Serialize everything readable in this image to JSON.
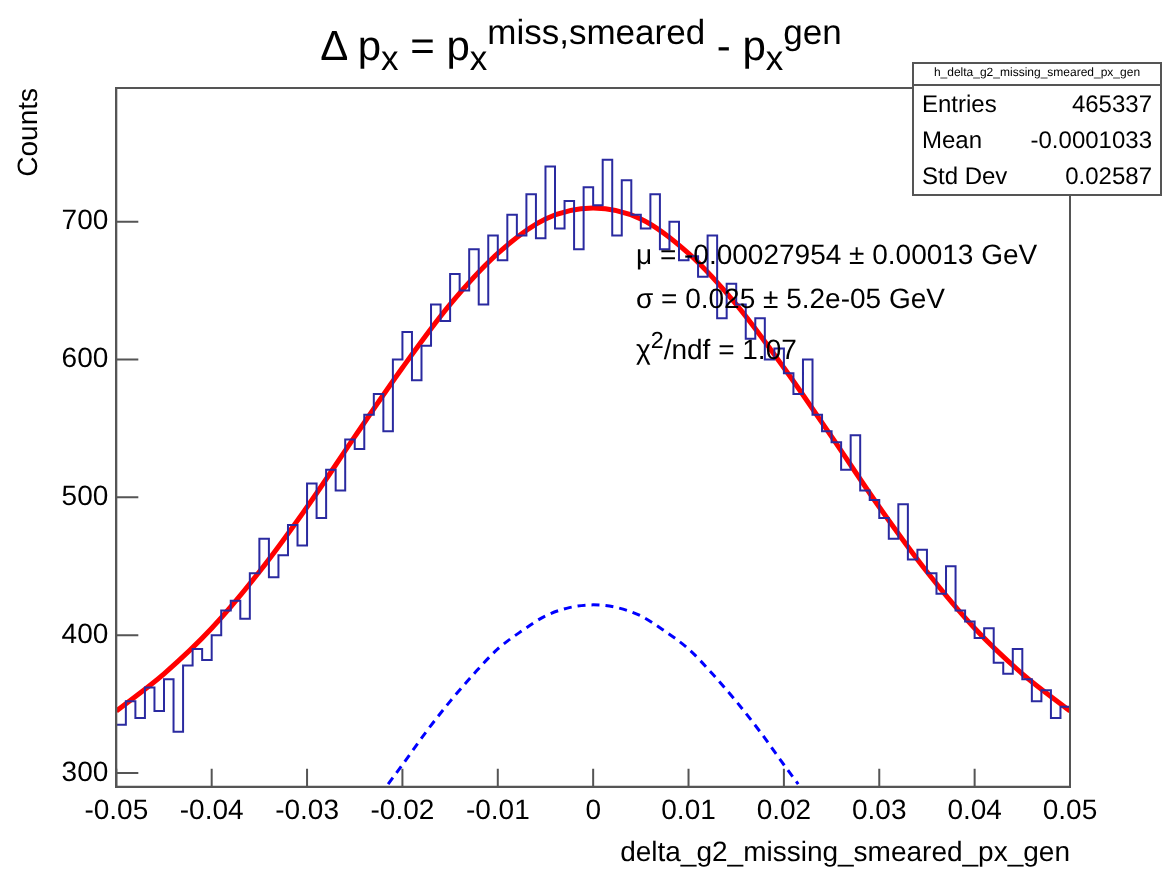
{
  "chart_data": {
    "type": "histogram",
    "title": "Δ p$_{x}$ = p$_{x}$$^{miss,smeared}$ - p$_{x}$$^{gen}$",
    "xlabel": "delta_g2_missing_smeared_px_gen",
    "ylabel": "Counts",
    "bins": [
      -0.05,
      -0.049,
      -0.048,
      -0.047,
      -0.046,
      -0.045,
      -0.044,
      -0.043,
      -0.042,
      -0.041,
      -0.04,
      -0.039,
      -0.038,
      -0.037,
      -0.036,
      -0.035,
      -0.034,
      -0.033,
      -0.032,
      -0.031,
      -0.03,
      -0.029,
      -0.028,
      -0.027,
      -0.026,
      -0.025,
      -0.024,
      -0.023,
      -0.022,
      -0.021,
      -0.02,
      -0.019,
      -0.018,
      -0.017,
      -0.016,
      -0.015,
      -0.014,
      -0.013,
      -0.012,
      -0.011,
      -0.01,
      -0.009,
      -0.008,
      -0.007,
      -0.006,
      -0.005,
      -0.004,
      -0.003,
      -0.002,
      -0.001,
      0,
      0.001,
      0.002,
      0.003,
      0.004,
      0.005,
      0.006,
      0.007,
      0.008,
      0.009,
      0.01,
      0.011,
      0.012,
      0.013,
      0.014,
      0.015,
      0.016,
      0.017,
      0.018,
      0.019,
      0.02,
      0.021,
      0.022,
      0.023,
      0.024,
      0.025,
      0.026,
      0.027,
      0.028,
      0.029,
      0.03,
      0.031,
      0.032,
      0.033,
      0.034,
      0.035,
      0.036,
      0.037,
      0.038,
      0.039,
      0.04,
      0.041,
      0.042,
      0.043,
      0.044,
      0.045,
      0.046,
      0.047,
      0.048,
      0.049,
      0.05
    ],
    "series": [
      {
        "type": "histogram",
        "color": "#2a2aa0",
        "values": [
          335,
          352,
          340,
          362,
          345,
          368,
          330,
          378,
          390,
          382,
          400,
          418,
          425,
          412,
          445,
          470,
          442,
          458,
          480,
          465,
          510,
          485,
          520,
          505,
          542,
          535,
          560,
          575,
          548,
          600,
          620,
          585,
          610,
          640,
          628,
          662,
          650,
          680,
          640,
          690,
          672,
          705,
          690,
          720,
          688,
          740,
          695,
          715,
          680,
          725,
          712,
          745,
          690,
          730,
          705,
          695,
          720,
          680,
          700,
          672,
          675,
          660,
          690,
          630,
          655,
          640,
          615,
          630,
          600,
          608,
          590,
          575,
          600,
          560,
          548,
          540,
          520,
          545,
          505,
          498,
          485,
          470,
          495,
          455,
          462,
          445,
          430,
          450,
          418,
          410,
          398,
          405,
          380,
          372,
          390,
          368,
          352,
          360,
          340,
          348
        ]
      },
      {
        "type": "line",
        "color": "#ff0000",
        "x": [
          -0.05,
          -0.045,
          -0.04,
          -0.035,
          -0.03,
          -0.025,
          -0.02,
          -0.015,
          -0.01,
          -0.005,
          0,
          0.005,
          0.01,
          0.015,
          0.02,
          0.025,
          0.03,
          0.035,
          0.04,
          0.045,
          0.05
        ],
        "values": [
          345,
          372,
          405,
          446,
          493,
          544,
          594,
          640,
          677,
          702,
          710,
          702,
          677,
          640,
          594,
          544,
          493,
          446,
          405,
          372,
          345
        ]
      },
      {
        "type": "line",
        "color": "#0000ff",
        "line_style": "dashed",
        "x": [
          -0.0215,
          -0.02,
          -0.0175,
          -0.015,
          -0.0125,
          -0.01,
          -0.0075,
          -0.005,
          -0.0025,
          0,
          0.0025,
          0.005,
          0.0075,
          0.01,
          0.0125,
          0.015,
          0.0175,
          0.02,
          0.0215
        ],
        "values": [
          292,
          306,
          330,
          352,
          372,
          390,
          403,
          414,
          420,
          422,
          420,
          414,
          403,
          390,
          372,
          352,
          330,
          306,
          292
        ]
      }
    ],
    "xlim": [
      -0.05,
      0.05
    ],
    "xticks": [
      -0.05,
      -0.04,
      -0.03,
      -0.02,
      -0.01,
      0,
      0.01,
      0.02,
      0.03,
      0.04,
      0.05
    ],
    "ylim": [
      290,
      797
    ],
    "yticks": [
      300,
      400,
      500,
      600,
      700
    ],
    "grid": false,
    "legend": false,
    "marker": "none",
    "annotations": [
      "h_delta_g2_missing_smeared_px_gen",
      "Entries",
      "465337",
      "Mean",
      "-0.0001033",
      "Std Dev",
      "0.02587",
      "μ = -0.00027954 ± 0.00013 GeV",
      "σ = 0.025 ± 5.2e-05 GeV",
      "χ$^{2}$/ndf = 1.07"
    ]
  }
}
